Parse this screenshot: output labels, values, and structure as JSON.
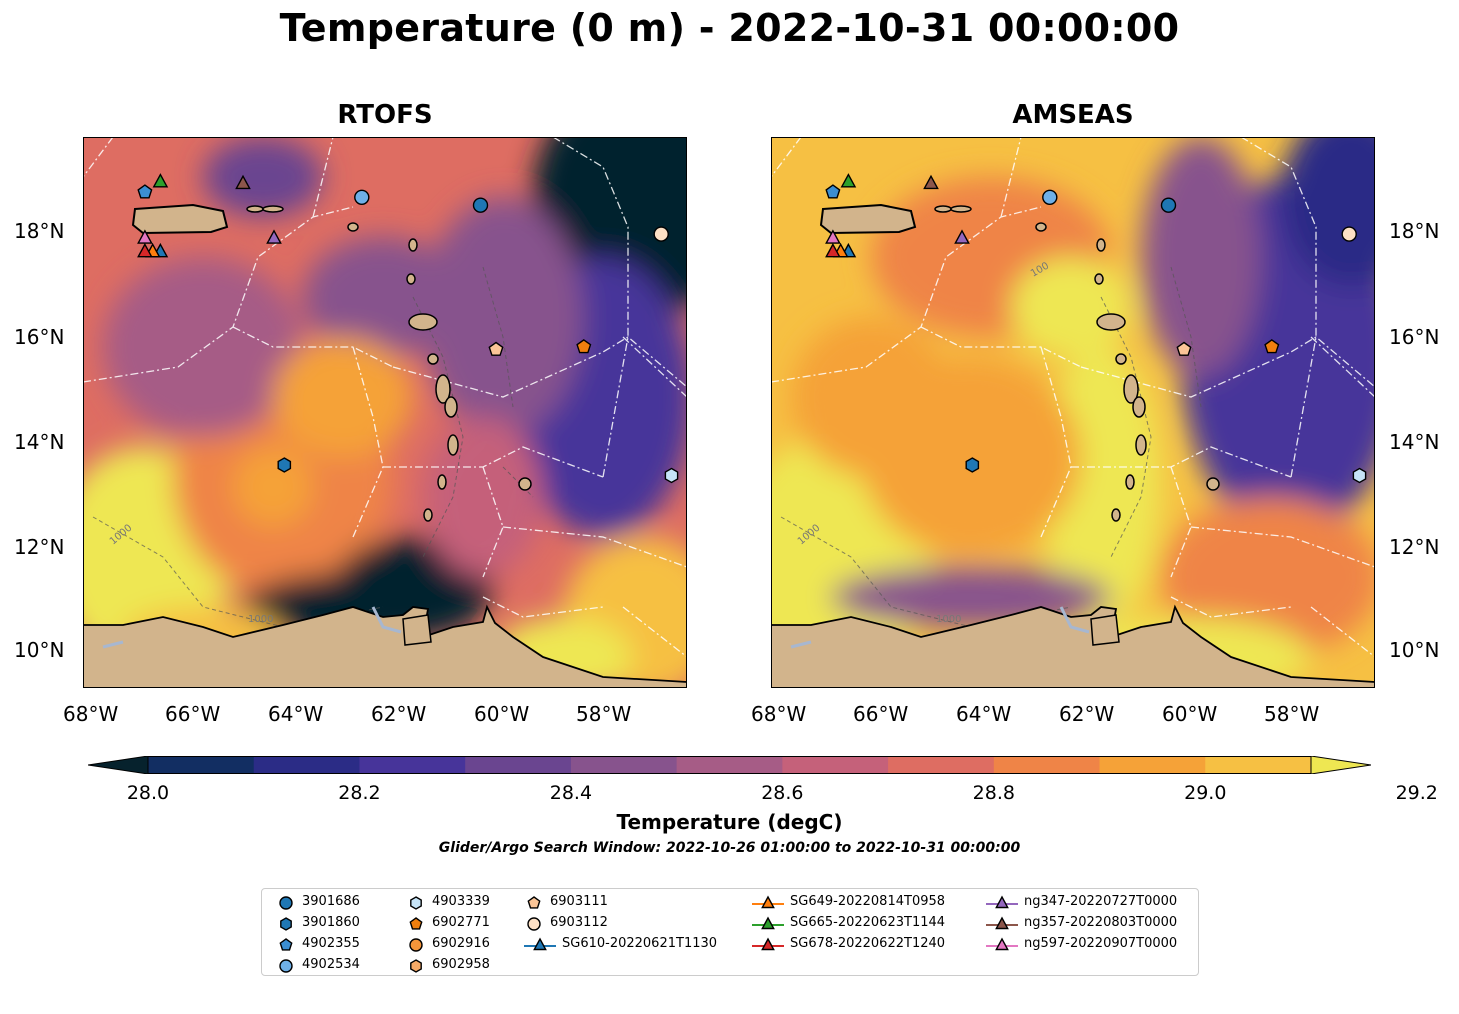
{
  "title": "Temperature (0 m) - 2022-10-31 00:00:00",
  "panels": [
    {
      "title": "RTOFS",
      "lat_labels_side": "left"
    },
    {
      "title": "AMSEAS",
      "lat_labels_side": "right"
    }
  ],
  "lon_labels": [
    "68°W",
    "66°W",
    "64°W",
    "62°W",
    "60°W",
    "58°W"
  ],
  "lat_labels": [
    "18°N",
    "16°N",
    "14°N",
    "12°N",
    "10°N"
  ],
  "contour_labels": [
    "1000",
    "100",
    "1000"
  ],
  "colorbar": {
    "label": "Temperature (degC)",
    "ticks": [
      "28.0",
      "28.2",
      "28.4",
      "28.6",
      "28.8",
      "29.0",
      "29.2"
    ],
    "colors": [
      "#06222d",
      "#122e62",
      "#2b2c86",
      "#47349a",
      "#6a4590",
      "#87538d",
      "#a65c86",
      "#c5617a",
      "#de6d62",
      "#ef8447",
      "#f5a238",
      "#f6c043",
      "#eee752"
    ],
    "extend": "both"
  },
  "subtitle": "Glider/Argo Search Window: 2022-10-26 01:00:00 to 2022-10-31 00:00:00",
  "legend": {
    "columns": [
      [
        {
          "label": "3901686",
          "marker": "circle",
          "color": "#1f77b4"
        },
        {
          "label": "3901860",
          "marker": "hexagon",
          "color": "#1f77b4"
        },
        {
          "label": "4902355",
          "marker": "pentagon",
          "color": "#3b8ed2"
        },
        {
          "label": "4902534",
          "marker": "circle",
          "color": "#6fb0e8"
        }
      ],
      [
        {
          "label": "4903339",
          "marker": "hexagon",
          "color": "#c6e4f7"
        },
        {
          "label": "6902771",
          "marker": "pentagon",
          "color": "#f07f0e"
        },
        {
          "label": "6902916",
          "marker": "circle",
          "color": "#f5953a"
        },
        {
          "label": "6902958",
          "marker": "hexagon",
          "color": "#f8ab67"
        }
      ],
      [
        {
          "label": "6903111",
          "marker": "pentagon",
          "color": "#fbc597"
        },
        {
          "label": "6903112",
          "marker": "circle",
          "color": "#fde0c5"
        },
        {
          "label": "SG610-20220621T1130",
          "marker": "triangle-line",
          "color": "#1f77b4"
        }
      ],
      [
        {
          "label": "SG649-20220814T0958",
          "marker": "triangle-line",
          "color": "#ff7f0e"
        },
        {
          "label": "SG665-20220623T1144",
          "marker": "triangle-line",
          "color": "#2ca02c"
        },
        {
          "label": "SG678-20220622T1240",
          "marker": "triangle-line",
          "color": "#d62728"
        }
      ],
      [
        {
          "label": "ng347-20220727T0000",
          "marker": "triangle-line",
          "color": "#9467bd"
        },
        {
          "label": "ng357-20220803T0000",
          "marker": "triangle-line",
          "color": "#8c564b"
        },
        {
          "label": "ng597-20220907T0000",
          "marker": "triangle-line",
          "color": "#e377c2"
        }
      ]
    ]
  },
  "map_extent": {
    "lon": [
      -68.2,
      -56.5
    ],
    "lat": [
      9.3,
      19.8
    ]
  },
  "markers": [
    {
      "id": "3901686",
      "marker": "circle",
      "color": "#1f77b4",
      "lon": -60.5,
      "lat": 18.5
    },
    {
      "id": "3901860",
      "marker": "hexagon",
      "color": "#1f77b4",
      "lon": -64.3,
      "lat": 13.55
    },
    {
      "id": "4902355",
      "marker": "pentagon",
      "color": "#3b8ed2",
      "lon": -67.0,
      "lat": 18.75
    },
    {
      "id": "4902534",
      "marker": "circle",
      "color": "#6fb0e8",
      "lon": -62.8,
      "lat": 18.65
    },
    {
      "id": "4903339",
      "marker": "hexagon",
      "color": "#c6e4f7",
      "lon": -56.8,
      "lat": 13.35
    },
    {
      "id": "6902771",
      "marker": "pentagon",
      "color": "#f07f0e",
      "lon": -58.5,
      "lat": 15.8
    },
    {
      "id": "6903111",
      "marker": "pentagon",
      "color": "#fbc597",
      "lon": -60.2,
      "lat": 15.75
    },
    {
      "id": "6903112",
      "marker": "circle",
      "color": "#fde0c5",
      "lon": -57.0,
      "lat": 17.95
    },
    {
      "id": "SG610-20220621T1130",
      "marker": "triangle",
      "color": "#1f77b4",
      "lon": -66.7,
      "lat": 17.62
    },
    {
      "id": "SG649-20220814T0958",
      "marker": "triangle",
      "color": "#ff7f0e",
      "lon": -66.85,
      "lat": 17.62
    },
    {
      "id": "SG665-20220623T1144",
      "marker": "triangle",
      "color": "#2ca02c",
      "lon": -66.7,
      "lat": 18.95
    },
    {
      "id": "SG678-20220622T1240",
      "marker": "triangle",
      "color": "#d62728",
      "lon": -67.0,
      "lat": 17.62
    },
    {
      "id": "ng347-20220727T0000",
      "marker": "triangle",
      "color": "#9467bd",
      "lon": -64.5,
      "lat": 17.88
    },
    {
      "id": "ng357-20220803T0000",
      "marker": "triangle",
      "color": "#8c564b",
      "lon": -65.1,
      "lat": 18.92
    },
    {
      "id": "ng597-20220907T0000",
      "marker": "triangle",
      "color": "#e377c2",
      "lon": -67.0,
      "lat": 17.88
    }
  ]
}
